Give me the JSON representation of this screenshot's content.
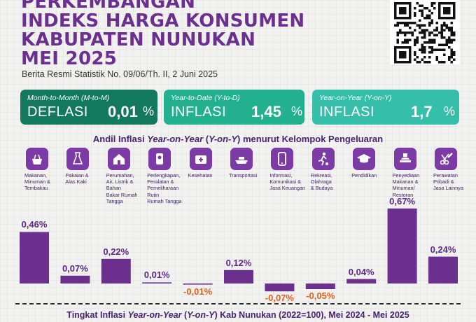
{
  "header": {
    "title_lines": [
      "PERKEMBANGAN",
      "INDEKS HARGA KONSUMEN",
      "KABUPATEN NUNUKAN",
      "MEI 2025"
    ],
    "subtitle": "Berita Resmi Statistik No. 09/06/Th. II, 2 Juni 2025",
    "qr_icon": "qr-code-icon"
  },
  "cards": [
    {
      "caption": "Month-to-Month (M-to-M)",
      "kind": "DEFLASI",
      "value": "0,01",
      "unit": "%",
      "color": "#13795e"
    },
    {
      "caption": "Year-to-Date (Y-to-D)",
      "kind": "INFLASI",
      "value": "1,45",
      "unit": "%",
      "color": "#22b08e"
    },
    {
      "caption": "Year-on-Year (Y-on-Y)",
      "kind": "INFLASI",
      "value": "1,7",
      "unit": "%",
      "color": "#35bfaa"
    }
  ],
  "chart_title": {
    "pre": "Andil Inflasi ",
    "italic": "Year-on-Year",
    "mid": " (",
    "italic2": "Y-on-Y",
    "post": ") menurut Kelompok Pengeluaran"
  },
  "chart_data": {
    "type": "bar",
    "title": "Andil Inflasi Year-on-Year (Y-on-Y) menurut Kelompok Pengeluaran",
    "categories": [
      "Makanan, Minuman & Tembakau",
      "Pakaian & Alas Kaki",
      "Perumahan, Air, Listrik & Bahan Bakar Rumah Tangga",
      "Perlengkapan, Peralatan & Pemeliharaan Rutin Rumah Tangga",
      "Kesehatan",
      "Transportasi",
      "Informasi, Komunikasi & Jasa Keuangan",
      "Rekreasi, Olahraga & Budaya",
      "Pendidikan",
      "Penyediaan Makanan & Minuman/ Restoran",
      "Perawatan Pribadi & Jasa Lainnya"
    ],
    "label_lines": [
      [
        "Makanan,",
        "Minuman &",
        "Tembakau"
      ],
      [
        "Pakaian &",
        "Alas Kaki"
      ],
      [
        "Perumahan,",
        "Air, Listrik &",
        "Bahan",
        "Bakar Rumah",
        "Tangga"
      ],
      [
        "Perlengkapan,",
        "Peralatan &",
        "Pemeliharaan",
        "Rutin",
        "Rumah Tangga"
      ],
      [
        "Kesehatan"
      ],
      [
        "Transportasi"
      ],
      [
        "Informasi,",
        "Komunikasi &",
        "Jasa Keuangan"
      ],
      [
        "Rekreasi,",
        "Olahraga",
        "& Budaya"
      ],
      [
        "Pendidikan"
      ],
      [
        "Penyediaan",
        "Makanan &",
        "Minuman/",
        "Restoran"
      ],
      [
        "Perawatan",
        "Pribadi &",
        "Jasa Lainnya"
      ]
    ],
    "icons": [
      "food-basket-icon",
      "dress-icon",
      "house-icon",
      "appliance-icon",
      "medical-kit-icon",
      "ship-icon",
      "smartphone-icon",
      "soccer-player-icon",
      "graduation-icon",
      "restaurant-icon",
      "scissors-comb-icon"
    ],
    "values": [
      0.46,
      0.07,
      0.22,
      0.01,
      -0.01,
      0.12,
      -0.07,
      -0.05,
      0.04,
      0.67,
      0.24
    ],
    "value_labels": [
      "0,46%",
      "0,07%",
      "0,22%",
      "0,01%",
      "-0,01%",
      "0,12%",
      "-0,07%",
      "-0,05%",
      "0,04%",
      "0,67%",
      "0,24%"
    ],
    "colors": {
      "bar": "#6b2f8e",
      "positive_label": "#5b2a86",
      "negative_label": "#e0601b",
      "icon_bg": "#7b3aa5"
    }
  },
  "footer": {
    "pre": "Tingkat Inflasi ",
    "italic": "Year-on-Year",
    "mid": " (",
    "italic2": "Y-on-Y",
    "post": ") Kab Nunukan (2022=100), Mei 2024 - Mei 2025"
  }
}
